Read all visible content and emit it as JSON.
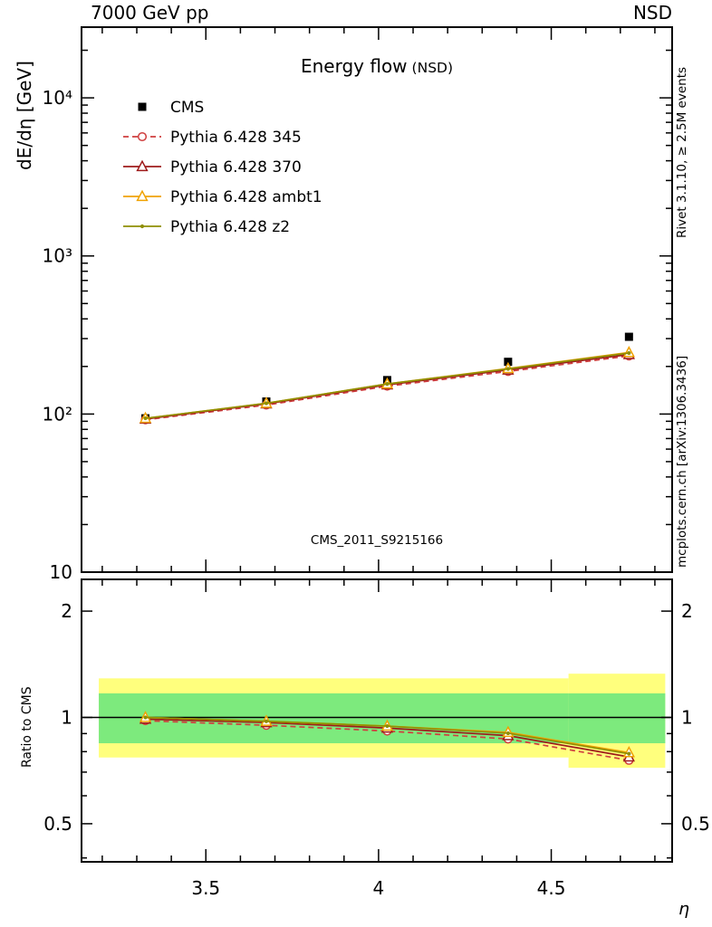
{
  "header": {
    "left": "7000 GeV pp",
    "right": "NSD"
  },
  "side_notes": {
    "top_right": "Rivet 3.1.10, ≥ 2.5M events",
    "bottom_right": "mcplots.cern.ch [arXiv:1306.3436]"
  },
  "watermark": "CMS_2011_S9215166",
  "chart_data": [
    {
      "type": "line",
      "panel": "main",
      "title": "Energy flow",
      "title_suffix": "(NSD)",
      "xlabel": "η",
      "ylabel": "dE/dη [GeV]",
      "xscale": "linear",
      "yscale": "log",
      "xlim": [
        3.14,
        4.85
      ],
      "ylim": [
        10,
        28000
      ],
      "xticks": [
        3.5,
        4,
        4.5
      ],
      "xtick_labels": [
        "3.5",
        "4",
        "4.5"
      ],
      "yticks": [
        10,
        100,
        1000,
        10000
      ],
      "ytick_labels": [
        "10",
        "10²",
        "10³",
        "10⁴"
      ],
      "legend_position": "top-left",
      "x": [
        3.325,
        3.675,
        4.025,
        4.375,
        4.725
      ],
      "series": [
        {
          "name": "CMS",
          "marker": "filled-square",
          "color": "#000000",
          "line": "none",
          "values": [
            94,
            120,
            164,
            214,
            308
          ]
        },
        {
          "name": "Pythia 6.428 345",
          "marker": "open-circle",
          "color": "#cf3f3f",
          "line": "dashed",
          "dash": "6 4",
          "values": [
            92,
            114,
            150,
            186,
            233
          ]
        },
        {
          "name": "Pythia 6.428 370",
          "marker": "open-triangle",
          "color": "#9e1b1b",
          "line": "solid",
          "values": [
            93,
            116,
            153,
            190,
            238
          ]
        },
        {
          "name": "Pythia 6.428 ambt1",
          "marker": "open-triangle",
          "color": "#f0a202",
          "line": "solid",
          "values": [
            94,
            117,
            155,
            194,
            245
          ]
        },
        {
          "name": "Pythia 6.428 z2",
          "marker": "small-dot",
          "color": "#8f8f00",
          "line": "solid",
          "values": [
            94,
            117,
            155,
            193,
            243
          ]
        }
      ]
    },
    {
      "type": "line",
      "panel": "ratio",
      "xlabel": "η",
      "ylabel": "Ratio to CMS",
      "xscale": "linear",
      "yscale": "log",
      "xlim": [
        3.14,
        4.85
      ],
      "ylim": [
        0.39,
        2.46
      ],
      "xticks": [
        3.5,
        4,
        4.5
      ],
      "xtick_labels": [
        "3.5",
        "4",
        "4.5"
      ],
      "yticks": [
        0.5,
        1,
        2
      ],
      "ytick_labels": [
        "0.5",
        "1",
        "2"
      ],
      "reference_line": 1,
      "bands": [
        {
          "name": "outer-uncertainty",
          "color": "#ffff7d",
          "segments": [
            {
              "x0": 3.19,
              "x1": 4.55,
              "lo": 0.77,
              "hi": 1.29
            },
            {
              "x0": 4.55,
              "x1": 4.83,
              "lo": 0.72,
              "hi": 1.33
            }
          ]
        },
        {
          "name": "inner-uncertainty",
          "color": "#7dea7d",
          "segments": [
            {
              "x0": 3.19,
              "x1": 4.55,
              "lo": 0.845,
              "hi": 1.17
            },
            {
              "x0": 4.55,
              "x1": 4.83,
              "lo": 0.845,
              "hi": 1.17
            }
          ]
        }
      ],
      "x": [
        3.325,
        3.675,
        4.025,
        4.375,
        4.725
      ],
      "series": [
        {
          "name": "Pythia 6.428 345",
          "marker": "open-circle",
          "color": "#cf3f3f",
          "line": "dashed",
          "dash": "6 4",
          "values": [
            0.979,
            0.95,
            0.915,
            0.869,
            0.756
          ]
        },
        {
          "name": "Pythia 6.428 370",
          "marker": "open-triangle",
          "color": "#9e1b1b",
          "line": "solid",
          "values": [
            0.989,
            0.967,
            0.933,
            0.888,
            0.773
          ]
        },
        {
          "name": "Pythia 6.428 ambt1",
          "marker": "open-triangle",
          "color": "#f0a202",
          "line": "solid",
          "values": [
            1.0,
            0.975,
            0.945,
            0.907,
            0.795
          ]
        },
        {
          "name": "Pythia 6.428 z2",
          "marker": "small-dot",
          "color": "#8f8f00",
          "line": "solid",
          "values": [
            1.0,
            0.975,
            0.945,
            0.902,
            0.789
          ]
        }
      ]
    }
  ]
}
